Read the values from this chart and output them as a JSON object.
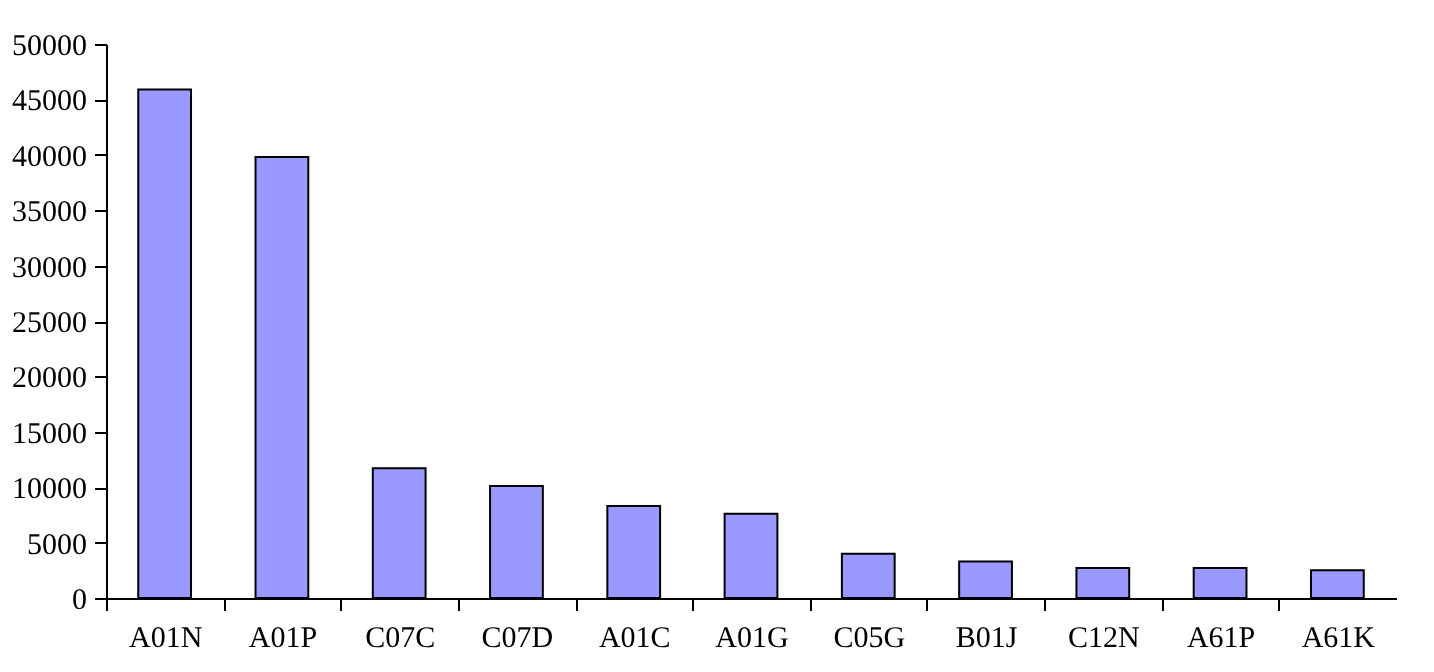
{
  "chart_data": {
    "type": "bar",
    "categories": [
      "A01N",
      "A01P",
      "C07C",
      "C07D",
      "A01C",
      "A01G",
      "C05G",
      "B01J",
      "C12N",
      "A61P",
      "A61K"
    ],
    "values": [
      45900,
      39800,
      11700,
      10100,
      8300,
      7600,
      4000,
      3300,
      2700,
      2700,
      2500
    ],
    "color": "#9999ff",
    "ylim": [
      0,
      50000
    ],
    "yticks": [
      0,
      5000,
      10000,
      15000,
      20000,
      25000,
      30000,
      35000,
      40000,
      45000,
      50000
    ],
    "grid": false
  }
}
